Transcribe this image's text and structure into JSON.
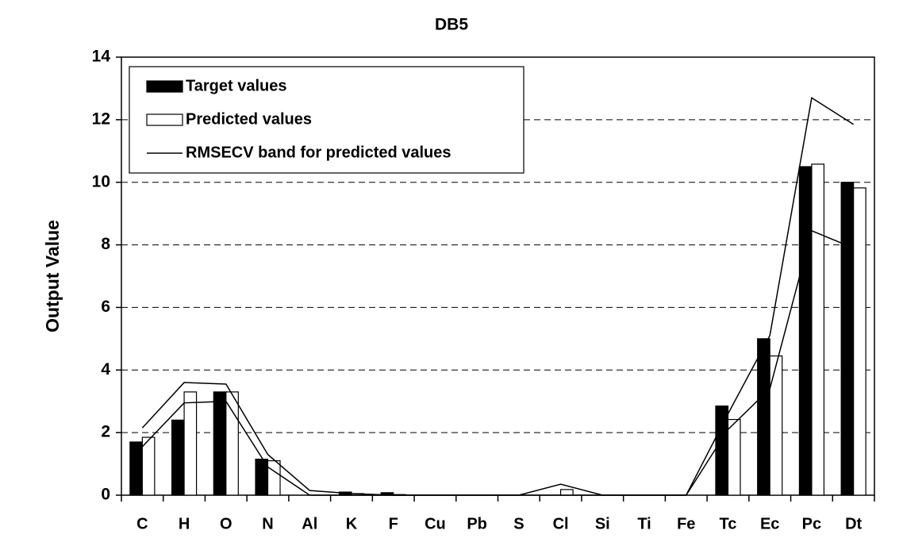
{
  "chart_data": {
    "type": "bar",
    "title": "DB5",
    "y_label": "Output Value",
    "categories": [
      "C",
      "H",
      "O",
      "N",
      "Al",
      "K",
      "F",
      "Cu",
      "Pb",
      "S",
      "Cl",
      "Si",
      "Ti",
      "Fe",
      "Tc",
      "Ec",
      "Pc",
      "Dt"
    ],
    "series": [
      {
        "name": "Target values",
        "kind": "bar",
        "color": "#000000",
        "values": [
          1.7,
          2.4,
          3.3,
          1.15,
          0,
          0.1,
          0.08,
          0,
          0,
          0,
          0,
          0,
          0,
          0,
          2.85,
          5.0,
          10.5,
          10.0
        ]
      },
      {
        "name": "Predicted values",
        "kind": "bar",
        "color": "#ffffff",
        "values": [
          1.85,
          3.3,
          3.3,
          1.1,
          0,
          0.05,
          0.02,
          0,
          0,
          0,
          0.18,
          0,
          0,
          0,
          2.42,
          4.45,
          10.58,
          9.82
        ]
      },
      {
        "name": "RMSECV band for predicted values",
        "kind": "line",
        "color": "#000000",
        "values": [
          2.15,
          3.6,
          3.55,
          1.3,
          0.15,
          0.05,
          0,
          0,
          0,
          0,
          0.35,
          0,
          0,
          0,
          2.6,
          5.1,
          12.7,
          11.85
        ]
      },
      {
        "kind": "line",
        "color": "#000000",
        "values": [
          1.55,
          2.95,
          3.0,
          0.9,
          0,
          0,
          0,
          0,
          0,
          0,
          0,
          0,
          0,
          0,
          2.1,
          3.4,
          8.45,
          7.9
        ]
      }
    ],
    "ylim": [
      0,
      14
    ],
    "yticks": [
      0,
      2,
      4,
      6,
      8,
      10,
      12,
      14
    ],
    "grid": true,
    "legend": "upper left"
  }
}
